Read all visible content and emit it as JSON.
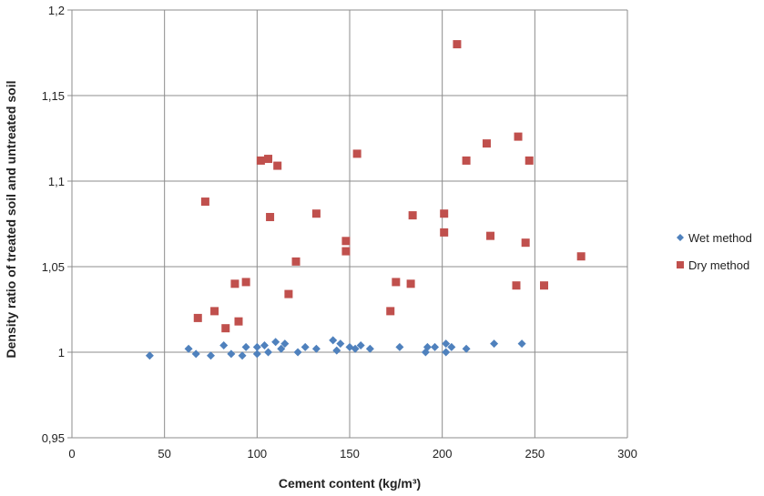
{
  "chart_data": {
    "type": "scatter",
    "title": "",
    "xlabel": "Cement content (kg/m³)",
    "ylabel": "Density ratio of treated soil and untreated soil",
    "xlim": [
      0,
      300
    ],
    "ylim": [
      0.95,
      1.2
    ],
    "x_ticks": [
      0,
      50,
      100,
      150,
      200,
      250,
      300
    ],
    "x_tick_labels": [
      "0",
      "50",
      "100",
      "150",
      "200",
      "250",
      "300"
    ],
    "y_ticks": [
      0.95,
      1.0,
      1.05,
      1.1,
      1.15,
      1.2
    ],
    "y_tick_labels": [
      "0,95",
      "1",
      "1,05",
      "1,1",
      "1,15",
      "1,2"
    ],
    "grid": true,
    "legend_position": "right",
    "series": [
      {
        "name": "Wet method",
        "color": "#4f81bd",
        "marker": "diamond",
        "points": [
          [
            42,
            0.998
          ],
          [
            63,
            1.002
          ],
          [
            67,
            0.999
          ],
          [
            75,
            0.998
          ],
          [
            82,
            1.004
          ],
          [
            86,
            0.999
          ],
          [
            92,
            0.998
          ],
          [
            94,
            1.003
          ],
          [
            100,
            0.999
          ],
          [
            100,
            1.003
          ],
          [
            104,
            1.004
          ],
          [
            106,
            1.0
          ],
          [
            110,
            1.006
          ],
          [
            113,
            1.002
          ],
          [
            115,
            1.005
          ],
          [
            122,
            1.0
          ],
          [
            126,
            1.003
          ],
          [
            132,
            1.002
          ],
          [
            141,
            1.007
          ],
          [
            143,
            1.001
          ],
          [
            145,
            1.005
          ],
          [
            150,
            1.003
          ],
          [
            153,
            1.002
          ],
          [
            156,
            1.004
          ],
          [
            161,
            1.002
          ],
          [
            177,
            1.003
          ],
          [
            191,
            1.0
          ],
          [
            192,
            1.003
          ],
          [
            196,
            1.003
          ],
          [
            202,
            1.0
          ],
          [
            202,
            1.005
          ],
          [
            205,
            1.003
          ],
          [
            213,
            1.002
          ],
          [
            228,
            1.005
          ],
          [
            243,
            1.005
          ]
        ]
      },
      {
        "name": "Dry method",
        "color": "#c0504d",
        "marker": "square",
        "points": [
          [
            68,
            1.02
          ],
          [
            72,
            1.088
          ],
          [
            77,
            1.024
          ],
          [
            83,
            1.014
          ],
          [
            88,
            1.04
          ],
          [
            90,
            1.018
          ],
          [
            94,
            1.041
          ],
          [
            102,
            1.112
          ],
          [
            106,
            1.113
          ],
          [
            107,
            1.079
          ],
          [
            111,
            1.109
          ],
          [
            117,
            1.034
          ],
          [
            121,
            1.053
          ],
          [
            132,
            1.081
          ],
          [
            148,
            1.065
          ],
          [
            148,
            1.059
          ],
          [
            154,
            1.116
          ],
          [
            172,
            1.024
          ],
          [
            175,
            1.041
          ],
          [
            183,
            1.04
          ],
          [
            184,
            1.08
          ],
          [
            201,
            1.081
          ],
          [
            201,
            1.07
          ],
          [
            208,
            1.18
          ],
          [
            213,
            1.112
          ],
          [
            224,
            1.122
          ],
          [
            226,
            1.068
          ],
          [
            240,
            1.039
          ],
          [
            241,
            1.126
          ],
          [
            245,
            1.064
          ],
          [
            247,
            1.112
          ],
          [
            255,
            1.039
          ],
          [
            275,
            1.056
          ]
        ]
      }
    ]
  }
}
